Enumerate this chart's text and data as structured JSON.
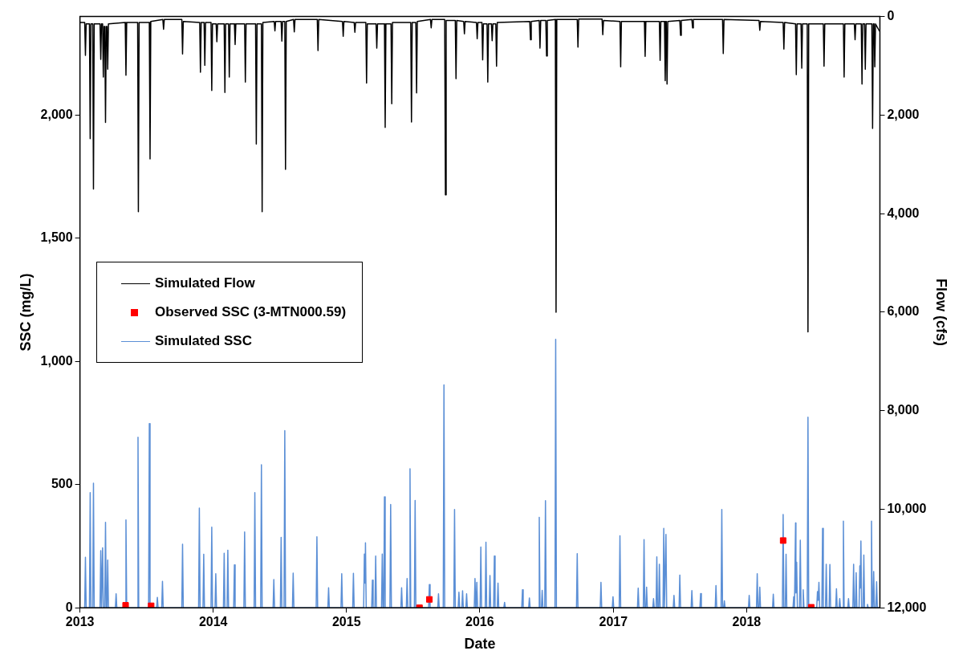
{
  "chart_data": {
    "type": "line",
    "xlabel": "Date",
    "ylabel": "SSC (mg/L)",
    "y2label": "Flow (cfs)",
    "xlim": [
      "2013",
      "2019"
    ],
    "xticks": [
      "2013",
      "2014",
      "2015",
      "2016",
      "2017",
      "2018"
    ],
    "ylim": [
      0,
      2400
    ],
    "yticks": [
      0,
      500,
      {
        "value": 1000,
        "label": "1,000"
      },
      {
        "value": 1500,
        "label": "1,500"
      },
      {
        "value": 2000,
        "label": "2,000"
      }
    ],
    "y2lim": [
      12000,
      0
    ],
    "y2ticks": [
      0,
      {
        "value": 2000,
        "label": "2,000"
      },
      {
        "value": 4000,
        "label": "4,000"
      },
      {
        "value": 6000,
        "label": "6,000"
      },
      {
        "value": 8000,
        "label": "8,000"
      },
      {
        "value": 10000,
        "label": "10,000"
      },
      {
        "value": 12000,
        "label": "12,000"
      }
    ],
    "grid": false,
    "legend": "left",
    "series": [
      {
        "name": "Simulated Flow",
        "axis": "y2",
        "color": "#000000",
        "x": [
          "2013-01-01",
          "2013-01-14",
          "2013-01-16",
          "2013-01-18",
          "2013-01-27",
          "2013-01-29",
          "2013-01-31",
          "2013-02-05",
          "2013-02-07",
          "2013-02-09",
          "2013-02-25",
          "2013-02-27",
          "2013-03-01",
          "2013-03-04",
          "2013-03-06",
          "2013-03-08",
          "2013-03-10",
          "2013-03-12",
          "2013-03-14",
          "2013-03-16",
          "2013-03-18",
          "2013-03-20",
          "2013-05-05",
          "2013-05-07",
          "2013-05-09",
          "2013-06-08",
          "2013-06-10",
          "2013-06-12",
          "2013-07-10",
          "2013-07-12",
          "2013-07-14",
          "2013-08-16",
          "2013-08-18",
          "2013-08-20",
          "2013-10-07",
          "2013-10-09",
          "2013-10-11",
          "2013-11-25",
          "2013-11-27",
          "2013-11-29",
          "2013-12-07",
          "2013-12-09",
          "2013-12-11",
          "2013-12-26",
          "2013-12-28",
          "2013-12-30",
          "2014-01-09",
          "2014-01-11",
          "2014-01-13",
          "2014-01-31",
          "2014-02-02",
          "2014-02-04",
          "2014-02-12",
          "2014-02-14",
          "2014-02-16",
          "2014-02-28",
          "2014-03-02",
          "2014-03-04",
          "2014-03-28",
          "2014-03-30",
          "2014-04-01",
          "2014-04-27",
          "2014-04-29",
          "2014-05-01",
          "2014-05-13",
          "2014-05-15",
          "2014-05-17",
          "2014-06-17",
          "2014-06-19",
          "2014-06-21",
          "2014-07-06",
          "2014-07-08",
          "2014-07-10",
          "2014-07-16",
          "2014-07-18",
          "2014-07-20",
          "2014-08-09",
          "2014-08-11",
          "2014-08-13",
          "2014-10-13",
          "2014-10-15",
          "2014-10-17",
          "2014-12-21",
          "2014-12-23",
          "2014-12-25",
          "2015-01-22",
          "2015-01-24",
          "2015-01-26",
          "2015-02-23",
          "2015-02-25",
          "2015-02-27",
          "2015-03-23",
          "2015-03-25",
          "2015-03-27",
          "2015-04-15",
          "2015-04-17",
          "2015-04-19",
          "2015-05-03",
          "2015-05-05",
          "2015-05-07",
          "2015-06-26",
          "2015-06-28",
          "2015-06-30",
          "2015-07-10",
          "2015-07-12",
          "2015-07-14",
          "2015-08-19",
          "2015-08-21",
          "2015-08-23",
          "2015-09-27",
          "2015-09-29",
          "2015-10-01",
          "2015-10-26",
          "2015-10-28",
          "2015-10-30",
          "2015-11-18",
          "2015-11-20",
          "2015-11-22",
          "2015-12-23",
          "2015-12-25",
          "2015-12-27",
          "2016-01-07",
          "2016-01-09",
          "2016-01-11",
          "2016-01-21",
          "2016-01-23",
          "2016-01-25",
          "2016-02-02",
          "2016-02-04",
          "2016-02-06",
          "2016-02-14",
          "2016-02-16",
          "2016-02-18",
          "2016-05-17",
          "2016-05-19",
          "2016-05-21",
          "2016-06-12",
          "2016-06-14",
          "2016-06-16",
          "2016-06-30",
          "2016-07-02",
          "2016-07-04",
          "2016-07-26",
          "2016-07-28",
          "2016-07-30",
          "2016-09-24",
          "2016-09-26",
          "2016-09-28",
          "2016-12-01",
          "2016-12-03",
          "2016-12-05",
          "2017-01-19",
          "2017-01-21",
          "2017-01-23",
          "2017-03-27",
          "2017-03-29",
          "2017-03-31",
          "2017-05-07",
          "2017-05-09",
          "2017-05-11",
          "2017-05-21",
          "2017-05-23",
          "2017-05-25",
          "2017-05-26",
          "2017-05-28",
          "2017-05-30",
          "2017-07-02",
          "2017-07-04",
          "2017-07-06",
          "2017-08-04",
          "2017-08-06",
          "2017-08-08",
          "2017-10-27",
          "2017-10-29",
          "2017-10-31",
          "2018-02-04",
          "2018-02-06",
          "2018-02-08",
          "2018-04-11",
          "2018-04-13",
          "2018-04-15",
          "2018-05-15",
          "2018-05-17",
          "2018-05-19",
          "2018-05-30",
          "2018-06-01",
          "2018-06-03",
          "2018-06-16",
          "2018-06-18",
          "2018-06-20",
          "2018-07-30",
          "2018-08-01",
          "2018-08-03",
          "2018-09-23",
          "2018-09-25",
          "2018-09-27",
          "2018-10-23",
          "2018-10-25",
          "2018-10-27",
          "2018-11-11",
          "2018-11-13",
          "2018-11-15",
          "2018-11-20",
          "2018-11-22",
          "2018-11-24",
          "2018-12-10",
          "2018-12-12",
          "2018-12-14",
          "2018-12-16",
          "2018-12-18",
          "2018-12-20",
          "2018-12-31"
        ],
        "values": [
          120,
          120,
          790,
          150,
          150,
          2480,
          150,
          150,
          3500,
          150,
          150,
          870,
          150,
          150,
          1230,
          200,
          200,
          2150,
          200,
          200,
          1070,
          150,
          120,
          1190,
          120,
          120,
          3960,
          120,
          120,
          2890,
          100,
          60,
          260,
          60,
          60,
          760,
          100,
          120,
          1130,
          120,
          120,
          990,
          120,
          120,
          1500,
          150,
          150,
          510,
          150,
          150,
          1540,
          150,
          150,
          1230,
          150,
          150,
          570,
          150,
          150,
          1330,
          150,
          150,
          2590,
          150,
          150,
          3960,
          120,
          100,
          290,
          100,
          100,
          500,
          100,
          100,
          3100,
          100,
          60,
          310,
          60,
          60,
          690,
          60,
          100,
          400,
          100,
          120,
          320,
          120,
          120,
          1350,
          150,
          150,
          640,
          150,
          150,
          2250,
          150,
          150,
          1770,
          120,
          120,
          2140,
          120,
          120,
          1550,
          100,
          60,
          230,
          60,
          60,
          3620,
          80,
          80,
          1260,
          80,
          100,
          350,
          100,
          120,
          450,
          120,
          120,
          880,
          150,
          150,
          1330,
          150,
          150,
          490,
          150,
          150,
          1010,
          120,
          100,
          470,
          100,
          80,
          640,
          80,
          80,
          800,
          80,
          60,
          6000,
          60,
          60,
          620,
          50,
          50,
          370,
          80,
          100,
          1020,
          100,
          100,
          810,
          100,
          100,
          890,
          100,
          100,
          1300,
          100,
          100,
          1370,
          100,
          80,
          380,
          80,
          60,
          230,
          60,
          60,
          750,
          60,
          80,
          280,
          100,
          120,
          660,
          120,
          150,
          1180,
          150,
          150,
          1050,
          150,
          150,
          6400,
          150,
          150,
          1010,
          150,
          150,
          1230,
          150,
          150,
          470,
          150,
          150,
          1370,
          150,
          150,
          1070,
          150,
          150,
          2270,
          150,
          150,
          1020,
          150,
          300
        ]
      },
      {
        "name": "Observed SSC (3-MTN000.59)",
        "type": "scatter",
        "marker": "square",
        "color": "#ff0000",
        "x": [
          "2013-05-06",
          "2013-07-15",
          "2015-07-20",
          "2015-08-16",
          "2018-04-11",
          "2018-06-27"
        ],
        "values": [
          10,
          8,
          0,
          34,
          273,
          2
        ]
      },
      {
        "name": "Simulated SSC",
        "color": "#5b8fd6",
        "x": [
          "2013-01-14",
          "2013-01-16",
          "2013-01-18",
          "2013-01-27",
          "2013-01-29",
          "2013-01-31",
          "2013-02-05",
          "2013-02-07",
          "2013-02-09",
          "2013-02-25",
          "2013-02-27",
          "2013-03-01",
          "2013-03-02",
          "2013-03-04",
          "2013-03-06",
          "2013-03-10",
          "2013-03-12",
          "2013-03-14",
          "2013-03-16",
          "2013-03-18",
          "2013-03-20",
          "2013-04-08",
          "2013-04-10",
          "2013-04-12",
          "2013-05-05",
          "2013-05-07",
          "2013-05-09",
          "2013-06-07",
          "2013-06-09",
          "2013-06-11",
          "2013-07-08",
          "2013-07-10",
          "2013-07-12",
          "2013-07-30",
          "2013-08-01",
          "2013-08-03",
          "2013-08-13",
          "2013-08-15",
          "2013-08-17",
          "2013-10-07",
          "2013-10-09",
          "2013-10-11",
          "2013-11-22",
          "2013-11-24",
          "2013-11-26",
          "2013-12-04",
          "2013-12-06",
          "2013-12-08",
          "2013-12-26",
          "2013-12-28",
          "2013-12-30",
          "2014-01-06",
          "2014-01-08",
          "2014-01-10",
          "2014-01-29",
          "2014-01-31",
          "2014-02-02",
          "2014-02-08",
          "2014-02-10",
          "2014-02-12",
          "2014-02-26",
          "2014-02-28",
          "2014-03-02",
          "2014-03-26",
          "2014-03-28",
          "2014-03-30",
          "2014-04-23",
          "2014-04-25",
          "2014-04-27",
          "2014-05-11",
          "2014-05-13",
          "2014-05-15",
          "2014-06-14",
          "2014-06-16",
          "2014-06-18",
          "2014-07-04",
          "2014-07-06",
          "2014-07-08",
          "2014-07-14",
          "2014-07-16",
          "2014-07-18",
          "2014-08-06",
          "2014-08-08",
          "2014-08-10",
          "2014-10-10",
          "2014-10-12",
          "2014-10-14",
          "2014-11-11",
          "2014-11-13",
          "2014-11-15",
          "2014-12-17",
          "2014-12-19",
          "2014-12-21",
          "2015-01-18",
          "2015-01-20",
          "2015-01-22",
          "2015-02-17",
          "2015-02-19",
          "2015-02-21",
          "2015-02-22",
          "2015-02-24",
          "2015-03-11",
          "2015-03-13",
          "2015-03-15",
          "2015-03-20",
          "2015-03-22",
          "2015-03-24",
          "2015-04-07",
          "2015-04-09",
          "2015-04-11",
          "2015-04-13",
          "2015-04-15",
          "2015-04-17",
          "2015-04-30",
          "2015-05-02",
          "2015-05-04",
          "2015-05-30",
          "2015-06-01",
          "2015-06-03",
          "2015-06-14",
          "2015-06-16",
          "2015-06-18",
          "2015-06-22",
          "2015-06-24",
          "2015-06-26",
          "2015-07-06",
          "2015-07-08",
          "2015-07-10",
          "2015-08-14",
          "2015-08-16",
          "2015-08-18",
          "2015-09-08",
          "2015-09-10",
          "2015-09-12",
          "2015-09-23",
          "2015-09-25",
          "2015-09-27",
          "2015-10-22",
          "2015-10-24",
          "2015-10-26",
          "2015-11-03",
          "2015-11-05",
          "2015-11-07",
          "2015-11-13",
          "2015-11-15",
          "2015-11-17",
          "2015-11-24",
          "2015-11-26",
          "2015-11-28",
          "2015-12-17",
          "2015-12-19",
          "2015-12-21",
          "2015-12-22",
          "2015-12-24",
          "2015-12-26",
          "2016-01-02",
          "2016-01-04",
          "2016-01-06",
          "2016-01-16",
          "2016-01-18",
          "2016-01-20",
          "2016-01-27",
          "2016-01-29",
          "2016-01-31",
          "2016-02-08",
          "2016-02-10",
          "2016-02-12",
          "2016-02-18",
          "2016-02-20",
          "2016-02-22",
          "2016-03-07",
          "2016-03-09",
          "2016-03-11",
          "2016-04-25",
          "2016-04-27",
          "2016-04-29",
          "2016-05-14",
          "2016-05-16",
          "2016-05-18",
          "2016-06-10",
          "2016-06-12",
          "2016-06-14",
          "2016-06-18",
          "2016-06-20",
          "2016-06-22",
          "2016-06-27",
          "2016-06-29",
          "2016-07-01",
          "2016-07-25",
          "2016-07-27",
          "2016-07-29",
          "2016-09-22",
          "2016-09-24",
          "2016-09-26",
          "2016-11-26",
          "2016-11-28",
          "2016-11-30",
          "2016-12-29",
          "2016-12-31",
          "2017-01-02",
          "2017-01-17",
          "2017-01-19",
          "2017-01-21",
          "2017-03-08",
          "2017-03-10",
          "2017-03-12",
          "2017-03-24",
          "2017-03-26",
          "2017-03-28",
          "2017-03-31",
          "2017-04-02",
          "2017-04-04",
          "2017-04-19",
          "2017-04-21",
          "2017-04-23",
          "2017-04-28",
          "2017-04-30",
          "2017-05-02",
          "2017-05-05",
          "2017-05-07",
          "2017-05-09",
          "2017-05-17",
          "2017-05-19",
          "2017-05-21",
          "2017-05-23",
          "2017-05-25",
          "2017-05-27",
          "2017-06-14",
          "2017-06-16",
          "2017-06-18",
          "2017-06-30",
          "2017-07-02",
          "2017-07-04",
          "2017-08-02",
          "2017-08-04",
          "2017-08-06",
          "2017-08-26",
          "2017-08-28",
          "2017-08-30",
          "2017-10-07",
          "2017-10-09",
          "2017-10-11",
          "2017-10-23",
          "2017-10-25",
          "2017-10-27",
          "2017-10-30",
          "2017-11-01",
          "2017-11-03",
          "2018-01-06",
          "2018-01-08",
          "2018-01-10",
          "2018-01-28",
          "2018-01-30",
          "2018-02-01",
          "2018-02-04",
          "2018-02-06",
          "2018-02-08",
          "2018-03-13",
          "2018-03-15",
          "2018-03-17",
          "2018-04-09",
          "2018-04-11",
          "2018-04-13",
          "2018-04-17",
          "2018-04-19",
          "2018-04-21",
          "2018-05-08",
          "2018-05-10",
          "2018-05-12",
          "2018-05-13",
          "2018-05-15",
          "2018-05-16",
          "2018-05-18",
          "2018-05-20",
          "2018-05-26",
          "2018-05-28",
          "2018-05-30",
          "2018-06-03",
          "2018-06-05",
          "2018-06-07",
          "2018-06-16",
          "2018-06-18",
          "2018-06-20",
          "2018-07-12",
          "2018-07-14",
          "2018-07-16",
          "2018-07-18",
          "2018-07-20",
          "2018-07-26",
          "2018-07-28",
          "2018-07-30",
          "2018-08-05",
          "2018-08-07",
          "2018-08-09",
          "2018-08-15",
          "2018-08-17",
          "2018-08-19",
          "2018-09-02",
          "2018-09-04",
          "2018-09-06",
          "2018-09-11",
          "2018-09-13",
          "2018-09-15",
          "2018-09-21",
          "2018-09-23",
          "2018-09-25",
          "2018-10-05",
          "2018-10-07",
          "2018-10-09",
          "2018-10-19",
          "2018-10-21",
          "2018-10-23",
          "2018-10-26",
          "2018-10-28",
          "2018-10-30",
          "2018-11-05",
          "2018-11-07",
          "2018-11-08",
          "2018-11-10",
          "2018-11-12",
          "2018-11-16",
          "2018-11-18",
          "2018-11-20",
          "2018-11-26",
          "2018-11-28",
          "2018-11-30",
          "2018-12-07",
          "2018-12-09",
          "2018-12-11",
          "2018-12-13",
          "2018-12-15",
          "2018-12-17",
          "2018-12-21",
          "2018-12-23",
          "2018-12-25",
          "2018-12-31"
        ],
        "values": [
          0,
          205,
          0,
          0,
          467,
          0,
          0,
          506,
          0,
          0,
          232,
          0,
          0,
          243,
          0,
          0,
          347,
          0,
          0,
          194,
          0,
          0,
          57,
          0,
          0,
          357,
          0,
          0,
          692,
          0,
          0,
          748,
          0,
          0,
          42,
          0,
          0,
          107,
          0,
          0,
          258,
          0,
          0,
          405,
          0,
          0,
          217,
          0,
          0,
          327,
          0,
          0,
          138,
          0,
          0,
          221,
          0,
          0,
          234,
          0,
          0,
          174,
          0,
          0,
          308,
          0,
          0,
          467,
          0,
          0,
          581,
          0,
          0,
          115,
          0,
          0,
          286,
          0,
          0,
          719,
          0,
          0,
          141,
          0,
          0,
          288,
          0,
          0,
          81,
          0,
          0,
          138,
          0,
          0,
          140,
          0,
          0,
          218,
          100,
          264,
          0,
          0,
          112,
          0,
          0,
          210,
          0,
          0,
          218,
          0,
          0,
          450,
          0,
          0,
          419,
          0,
          0,
          81,
          0,
          0,
          119,
          0,
          0,
          564,
          0,
          0,
          436,
          0,
          0,
          94,
          0,
          0,
          57,
          0,
          0,
          905,
          0,
          0,
          399,
          0,
          0,
          63,
          0,
          0,
          69,
          0,
          0,
          57,
          0,
          0,
          119,
          0,
          0,
          103,
          0,
          0,
          247,
          0,
          0,
          266,
          0,
          0,
          131,
          0,
          0,
          210,
          0,
          0,
          100,
          0,
          0,
          22,
          0,
          0,
          73,
          0,
          0,
          40,
          0,
          0,
          367,
          0,
          0,
          71,
          0,
          0,
          435,
          0,
          0,
          1090,
          0,
          0,
          220,
          0,
          0,
          103,
          0,
          0,
          45,
          0,
          0,
          292,
          0,
          0,
          80,
          0,
          0,
          277,
          0,
          0,
          84,
          0,
          0,
          37,
          0,
          0,
          207,
          0,
          0,
          177,
          0,
          0,
          322,
          0,
          0,
          298,
          0,
          0,
          50,
          0,
          0,
          133,
          0,
          0,
          70,
          0,
          0,
          58,
          0,
          0,
          90,
          0,
          0,
          399,
          0,
          0,
          28,
          0,
          0,
          50,
          0,
          0,
          138,
          0,
          0,
          84,
          0,
          0,
          55,
          0,
          0,
          379,
          0,
          0,
          217,
          0,
          0,
          45,
          0,
          0,
          344,
          60,
          185,
          0,
          0,
          274,
          0,
          0,
          73,
          0,
          0,
          774,
          0,
          0,
          66,
          30,
          103,
          0,
          0,
          322,
          0,
          0,
          177,
          0,
          0,
          176,
          0,
          0,
          77,
          0,
          0,
          37,
          0,
          0,
          352,
          0,
          0,
          37,
          0,
          0,
          177,
          0,
          0,
          142,
          0,
          0,
          170,
          80,
          271,
          0,
          0,
          214,
          0,
          0,
          14,
          0,
          0,
          352,
          0,
          0,
          147,
          0,
          0,
          106,
          0,
          0
        ]
      }
    ]
  }
}
